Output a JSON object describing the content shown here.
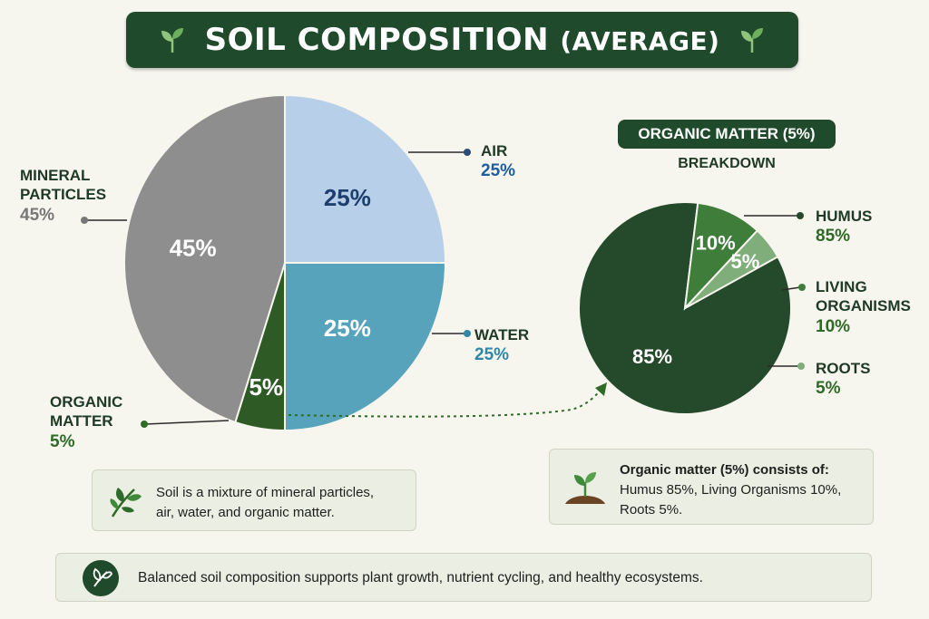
{
  "header": {
    "title_main": "SOIL COMPOSITION",
    "title_paren": "(AVERAGE)",
    "left_icon": "leaf-sprout-icon",
    "right_icon": "leaf-sprout-icon"
  },
  "chart_data": [
    {
      "type": "pie",
      "slices": [
        {
          "label": "AIR",
          "value": 25,
          "value_label": "25%",
          "color": "#b7cfe8",
          "label_color": "#1f5e9c",
          "inner_color": "#1d3f6e"
        },
        {
          "label": "WATER",
          "value": 25,
          "value_label": "25%",
          "color": "#56a3bb",
          "label_color": "#2f86a6",
          "inner_color": "#ffffff"
        },
        {
          "label": "ORGANIC MATTER",
          "value": 5,
          "value_label": "5%",
          "color": "#2e5a26",
          "label_color": "#2f6a27",
          "inner_color": "#ffffff"
        },
        {
          "label": "MINERAL PARTICLES",
          "value": 45,
          "value_label": "45%",
          "color": "#8e8e8e",
          "label_color": "#777777",
          "inner_color": "#ffffff"
        }
      ]
    },
    {
      "type": "pie",
      "title": "ORGANIC MATTER (5%)",
      "subtitle": "BREAKDOWN",
      "slices": [
        {
          "label": "HUMUS",
          "value": 85,
          "value_label": "85%",
          "color": "#244a2b",
          "label_color": "#2f6a27",
          "inner_color": "#ffffff"
        },
        {
          "label": "LIVING ORGANISMS",
          "value": 10,
          "value_label": "10%",
          "color": "#3f7d3a",
          "label_color": "#2f6a27",
          "inner_color": "#ffffff"
        },
        {
          "label": "ROOTS",
          "value": 5,
          "value_label": "5%",
          "color": "#7fae7a",
          "label_color": "#2f6a27",
          "inner_color": "#ffffff"
        }
      ]
    }
  ],
  "labels": {
    "mineral_line1": "MINERAL",
    "mineral_line2": "PARTICLES",
    "mineral_pct": "45%",
    "air": "AIR",
    "air_pct": "25%",
    "water": "WATER",
    "water_pct": "25%",
    "organic_line1": "ORGANIC",
    "organic_line2": "MATTER",
    "organic_pct": "5%",
    "humus": "HUMUS",
    "humus_pct": "85%",
    "living_line1": "LIVING",
    "living_line2": "ORGANISMS",
    "living_pct": "10%",
    "roots": "ROOTS",
    "roots_pct": "5%"
  },
  "notes": {
    "left_line1": "Soil is a mixture of mineral particles,",
    "left_line2": "air, water, and organic matter.",
    "left_icon": "leaf-sprig-icon",
    "right_heading": "Organic matter (5%) consists of:",
    "right_line1": "Humus 85%, Living Organisms 10%,",
    "right_line2": "Roots 5%.",
    "right_icon": "seedling-soil-icon",
    "footer": "Balanced soil composition supports plant growth, nutrient cycling, and healthy ecosystems.",
    "footer_icon": "leaf-circle-icon"
  },
  "colors": {
    "banner": "#1f4a2c",
    "background": "#f6f5ee"
  }
}
